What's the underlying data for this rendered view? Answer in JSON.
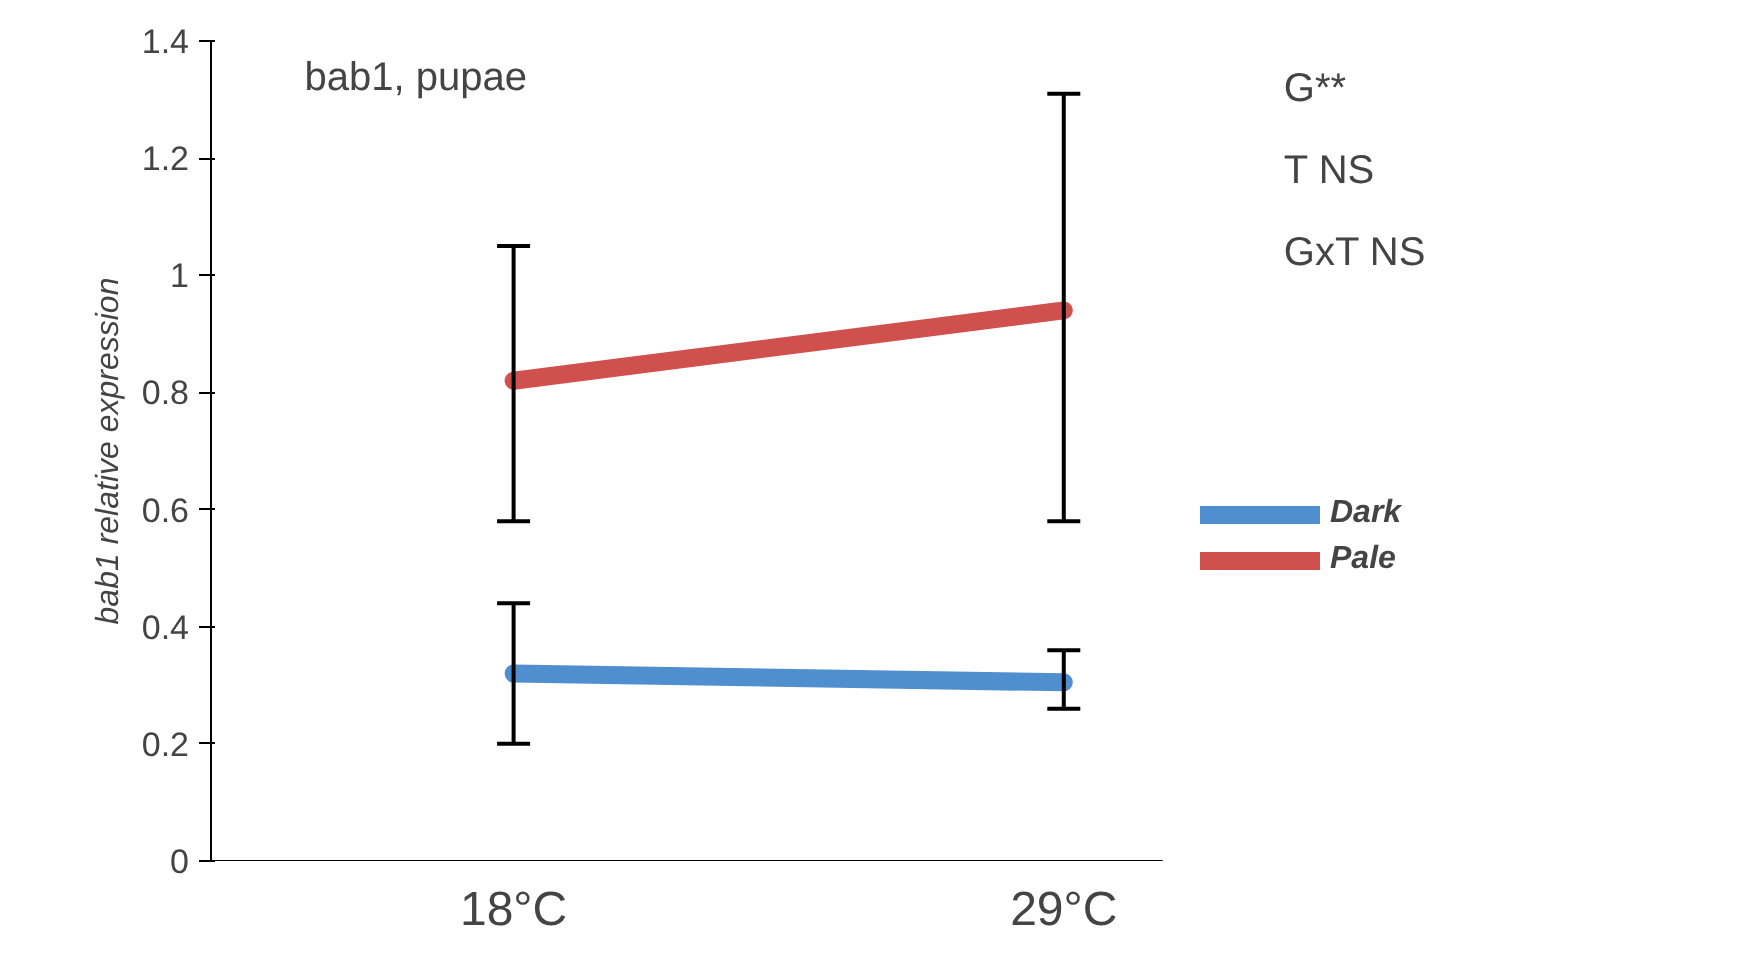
{
  "chart_data": {
    "type": "line",
    "ylabel": "bab1 relative expression",
    "annotations": [
      "bab1, pupae",
      "G**",
      "T NS",
      "GxT NS"
    ],
    "categories": [
      "18°C",
      "29°C"
    ],
    "series": [
      {
        "name": "Dark",
        "color": "#4f8fd0",
        "values": [
          0.32,
          0.305
        ],
        "errors": [
          [
            0.2,
            0.44
          ],
          [
            0.26,
            0.36
          ]
        ]
      },
      {
        "name": "Pale",
        "color": "#d0504d",
        "values": [
          0.82,
          0.94
        ],
        "errors": [
          [
            0.58,
            1.05
          ],
          [
            0.58,
            1.31
          ]
        ]
      }
    ],
    "ylim": [
      0,
      1.4
    ],
    "yticks": [
      0,
      0.2,
      0.4,
      0.6,
      0.8,
      1,
      1.2,
      1.4
    ],
    "grid": false,
    "legend": "right",
    "marker": "none",
    "line_style": "solid"
  }
}
